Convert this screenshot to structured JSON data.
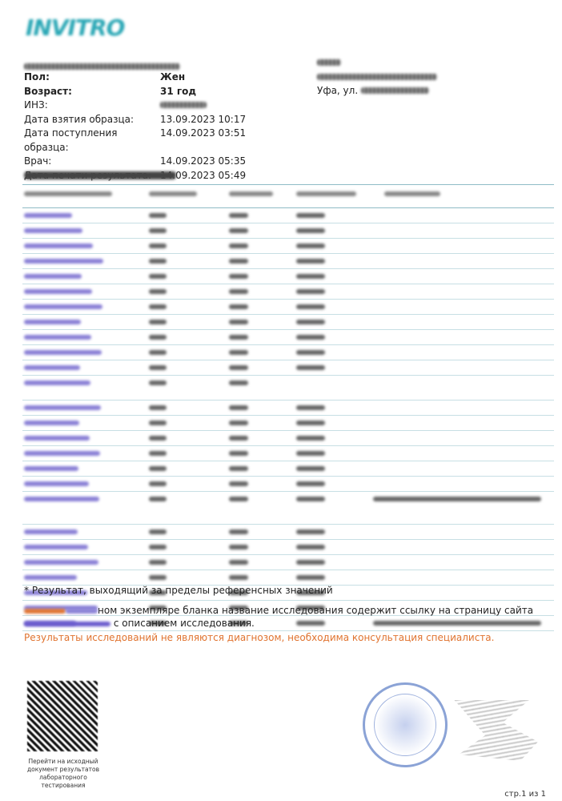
{
  "patient": {
    "fields": [
      {
        "label": "Пол:",
        "value": "Жен",
        "bold": true
      },
      {
        "label": "Возраст:",
        "value": "31 год",
        "bold": true
      },
      {
        "label": "ИНЗ:",
        "value": null,
        "bold": false
      },
      {
        "label": "Дата взятия образца:",
        "value": "13.09.2023 10:17",
        "bold": false
      },
      {
        "label": "Дата поступления образца:",
        "value": "14.09.2023 03:51",
        "bold": false
      },
      {
        "label": "Врач:",
        "value": "14.09.2023 05:35",
        "bold": false
      },
      {
        "label": "Дата печати результата:",
        "value": "14.09.2023 05:49",
        "bold": false
      }
    ]
  },
  "organization": {
    "address_prefix": "Уфа, ул."
  },
  "footer": {
    "footnote": "* Результат, выходящий за пределы референсных значений",
    "note_text": "ном экземпляре бланка название исследования содержит ссылку на страницу сайта",
    "note_text2": "с описанием исследования.",
    "warning": "Результаты исследований не являются диагнозом, необходима консультация специалиста.",
    "qr_caption": "Перейти на исходный документ результатов лабораторного тестирования",
    "page": "стр.1 из 1"
  },
  "colors": {
    "accent": "#2aa7b5",
    "warning": "#e0732f",
    "link": "#6a5acd"
  }
}
